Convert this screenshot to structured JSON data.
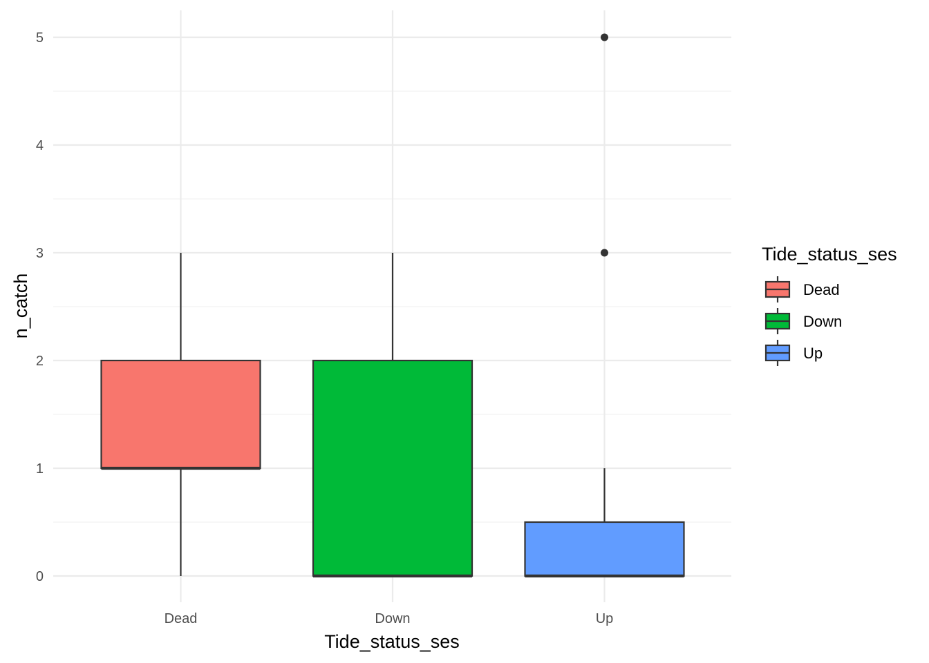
{
  "chart_data": {
    "type": "boxplot",
    "xlabel": "Tide_status_ses",
    "ylabel": "n_catch",
    "categories": [
      "Dead",
      "Down",
      "Up"
    ],
    "ylim": [
      -0.25,
      5.25
    ],
    "y_ticks": [
      0,
      1,
      2,
      3,
      4,
      5
    ],
    "y_tick_labels": [
      "0",
      "1",
      "2",
      "3",
      "4",
      "5"
    ],
    "grid": true,
    "boxes": [
      {
        "category": "Dead",
        "min": 0,
        "q1": 1,
        "median": 1,
        "q3": 2,
        "max": 3,
        "outliers": [],
        "fill": "#F8766D"
      },
      {
        "category": "Down",
        "min": 0,
        "q1": 0,
        "median": 0,
        "q3": 2,
        "max": 3,
        "outliers": [],
        "fill": "#00BA38"
      },
      {
        "category": "Up",
        "min": 0,
        "q1": 0,
        "median": 0,
        "q3": 0.5,
        "max": 1,
        "outliers": [
          3,
          5
        ],
        "fill": "#619CFF"
      }
    ],
    "legend": {
      "title": "Tide_status_ses",
      "position": "right",
      "entries": [
        {
          "label": "Dead",
          "color": "#F8766D"
        },
        {
          "label": "Down",
          "color": "#00BA38"
        },
        {
          "label": "Up",
          "color": "#619CFF"
        }
      ]
    }
  }
}
